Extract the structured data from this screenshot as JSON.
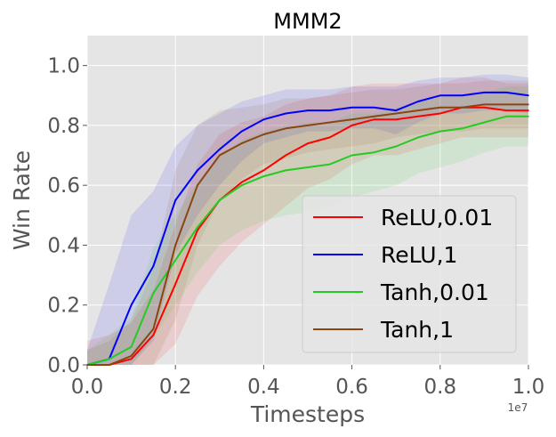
{
  "chart_data": {
    "type": "line",
    "title": "MMM2",
    "xlabel": "Timesteps",
    "ylabel": "Win Rate",
    "x_offset_text": "1e7",
    "xlim": [
      0.0,
      1.0
    ],
    "ylim": [
      0.0,
      1.1
    ],
    "x_ticks": [
      "0.0",
      "0.2",
      "0.4",
      "0.6",
      "0.8",
      "1.0"
    ],
    "y_ticks": [
      "0.0",
      "0.2",
      "0.4",
      "0.6",
      "0.8",
      "1.0"
    ],
    "grid": true,
    "legend_position": "lower-right",
    "x": [
      0.0,
      0.05,
      0.1,
      0.15,
      0.2,
      0.25,
      0.3,
      0.35,
      0.4,
      0.45,
      0.5,
      0.55,
      0.6,
      0.65,
      0.7,
      0.75,
      0.8,
      0.85,
      0.9,
      0.95,
      1.0
    ],
    "series": [
      {
        "name": "ReLU,0.01",
        "color": "#ff0000",
        "values": [
          0.0,
          0.0,
          0.02,
          0.1,
          0.27,
          0.45,
          0.55,
          0.61,
          0.65,
          0.7,
          0.74,
          0.76,
          0.8,
          0.82,
          0.82,
          0.83,
          0.84,
          0.86,
          0.86,
          0.85,
          0.85
        ],
        "band": [
          0.08,
          0.1,
          0.12,
          0.15,
          0.2,
          0.22,
          0.22,
          0.2,
          0.18,
          0.17,
          0.15,
          0.14,
          0.13,
          0.12,
          0.12,
          0.11,
          0.1,
          0.1,
          0.1,
          0.09,
          0.09
        ]
      },
      {
        "name": "ReLU,1",
        "color": "#0000ff",
        "values": [
          0.0,
          0.02,
          0.2,
          0.33,
          0.55,
          0.65,
          0.72,
          0.78,
          0.82,
          0.84,
          0.85,
          0.85,
          0.86,
          0.86,
          0.85,
          0.88,
          0.9,
          0.9,
          0.91,
          0.91,
          0.9
        ],
        "band": [
          0.05,
          0.25,
          0.3,
          0.25,
          0.18,
          0.15,
          0.12,
          0.1,
          0.08,
          0.08,
          0.07,
          0.07,
          0.07,
          0.07,
          0.08,
          0.07,
          0.06,
          0.06,
          0.06,
          0.06,
          0.06
        ]
      },
      {
        "name": "Tanh,0.01",
        "color": "#22cc22",
        "values": [
          0.0,
          0.02,
          0.06,
          0.24,
          0.35,
          0.46,
          0.55,
          0.6,
          0.63,
          0.65,
          0.66,
          0.67,
          0.7,
          0.71,
          0.73,
          0.76,
          0.78,
          0.79,
          0.81,
          0.83,
          0.83
        ],
        "band": [
          0.05,
          0.08,
          0.1,
          0.15,
          0.15,
          0.15,
          0.15,
          0.15,
          0.15,
          0.15,
          0.15,
          0.14,
          0.14,
          0.13,
          0.13,
          0.12,
          0.12,
          0.11,
          0.1,
          0.1,
          0.1
        ]
      },
      {
        "name": "Tanh,1",
        "color": "#8b4513",
        "values": [
          0.0,
          0.0,
          0.03,
          0.12,
          0.4,
          0.6,
          0.7,
          0.74,
          0.77,
          0.79,
          0.8,
          0.81,
          0.82,
          0.83,
          0.84,
          0.85,
          0.86,
          0.86,
          0.87,
          0.87,
          0.87
        ],
        "band": [
          0.05,
          0.08,
          0.12,
          0.2,
          0.25,
          0.2,
          0.15,
          0.12,
          0.1,
          0.1,
          0.09,
          0.09,
          0.09,
          0.09,
          0.08,
          0.08,
          0.08,
          0.08,
          0.08,
          0.08,
          0.08
        ]
      }
    ]
  }
}
